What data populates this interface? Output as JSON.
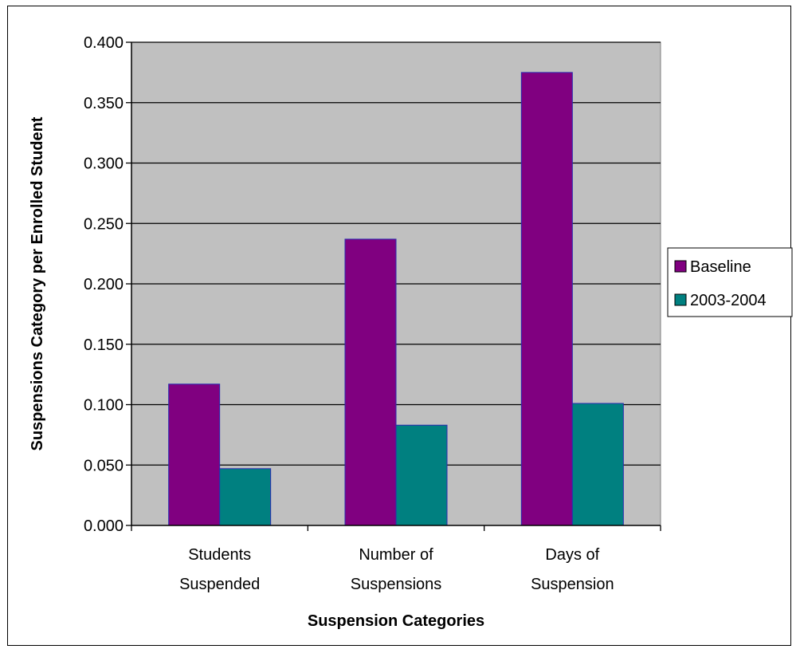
{
  "chart_data": {
    "type": "bar",
    "title": "",
    "xlabel": "Suspension Categories",
    "ylabel": "Suspensions Category per Enrolled Student",
    "categories": [
      [
        "Students",
        "Suspended"
      ],
      [
        "Number of",
        "Suspensions"
      ],
      [
        "Days of",
        "Suspension"
      ]
    ],
    "series": [
      {
        "name": "Baseline",
        "values": [
          0.117,
          0.237,
          0.375
        ],
        "color": "#800080"
      },
      {
        "name": "2003-2004",
        "values": [
          0.047,
          0.083,
          0.101
        ],
        "color": "#008080"
      }
    ],
    "ylim": [
      0,
      0.4
    ],
    "yticks": [
      "0.000",
      "0.050",
      "0.100",
      "0.150",
      "0.200",
      "0.250",
      "0.300",
      "0.350",
      "0.400"
    ],
    "grid": true,
    "plot_background": "#C0C0C0",
    "legend_position": "right"
  }
}
